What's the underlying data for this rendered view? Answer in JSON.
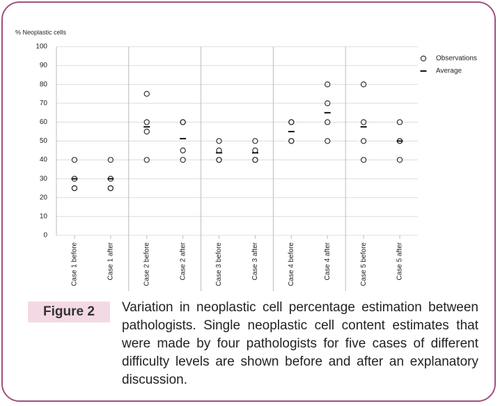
{
  "chart_data": {
    "type": "scatter",
    "y_label": "% Neoplastic cells",
    "categories": [
      "Case 1 before",
      "Case 1 after",
      "Case 2 before",
      "Case 2 after",
      "Case 3 before",
      "Case 3 after",
      "Case 4 before",
      "Case 4 after",
      "Case 5 before",
      "Case 5 after"
    ],
    "series": [
      {
        "name": "Observations",
        "color": "#222222",
        "values": [
          [
            40,
            30,
            25,
            25
          ],
          [
            40,
            30,
            25,
            25
          ],
          [
            75,
            60,
            55,
            40
          ],
          [
            60,
            60,
            45,
            40
          ],
          [
            50,
            45,
            40,
            40
          ],
          [
            50,
            45,
            40,
            40
          ],
          [
            60,
            60,
            50,
            50
          ],
          [
            80,
            70,
            60,
            50
          ],
          [
            80,
            60,
            50,
            40
          ],
          [
            60,
            50,
            50,
            40
          ]
        ]
      },
      {
        "name": "Average",
        "color": "#111111",
        "values": [
          30,
          30,
          57.5,
          51.25,
          43.75,
          43.75,
          55,
          65,
          57.5,
          50
        ]
      }
    ],
    "ylim": [
      0,
      100
    ],
    "yticks": [
      0,
      10,
      20,
      30,
      40,
      50,
      60,
      70,
      80,
      90,
      100
    ],
    "grid": true,
    "legend": "right",
    "figure_label": "Figure 2",
    "caption": "Variation in neoplastic cell percentage estimation between pathologists. Single neoplastic cell content estimates that were made by four pathologists for five cases of different difficulty levels are shown before and after an explanatory discussion."
  }
}
